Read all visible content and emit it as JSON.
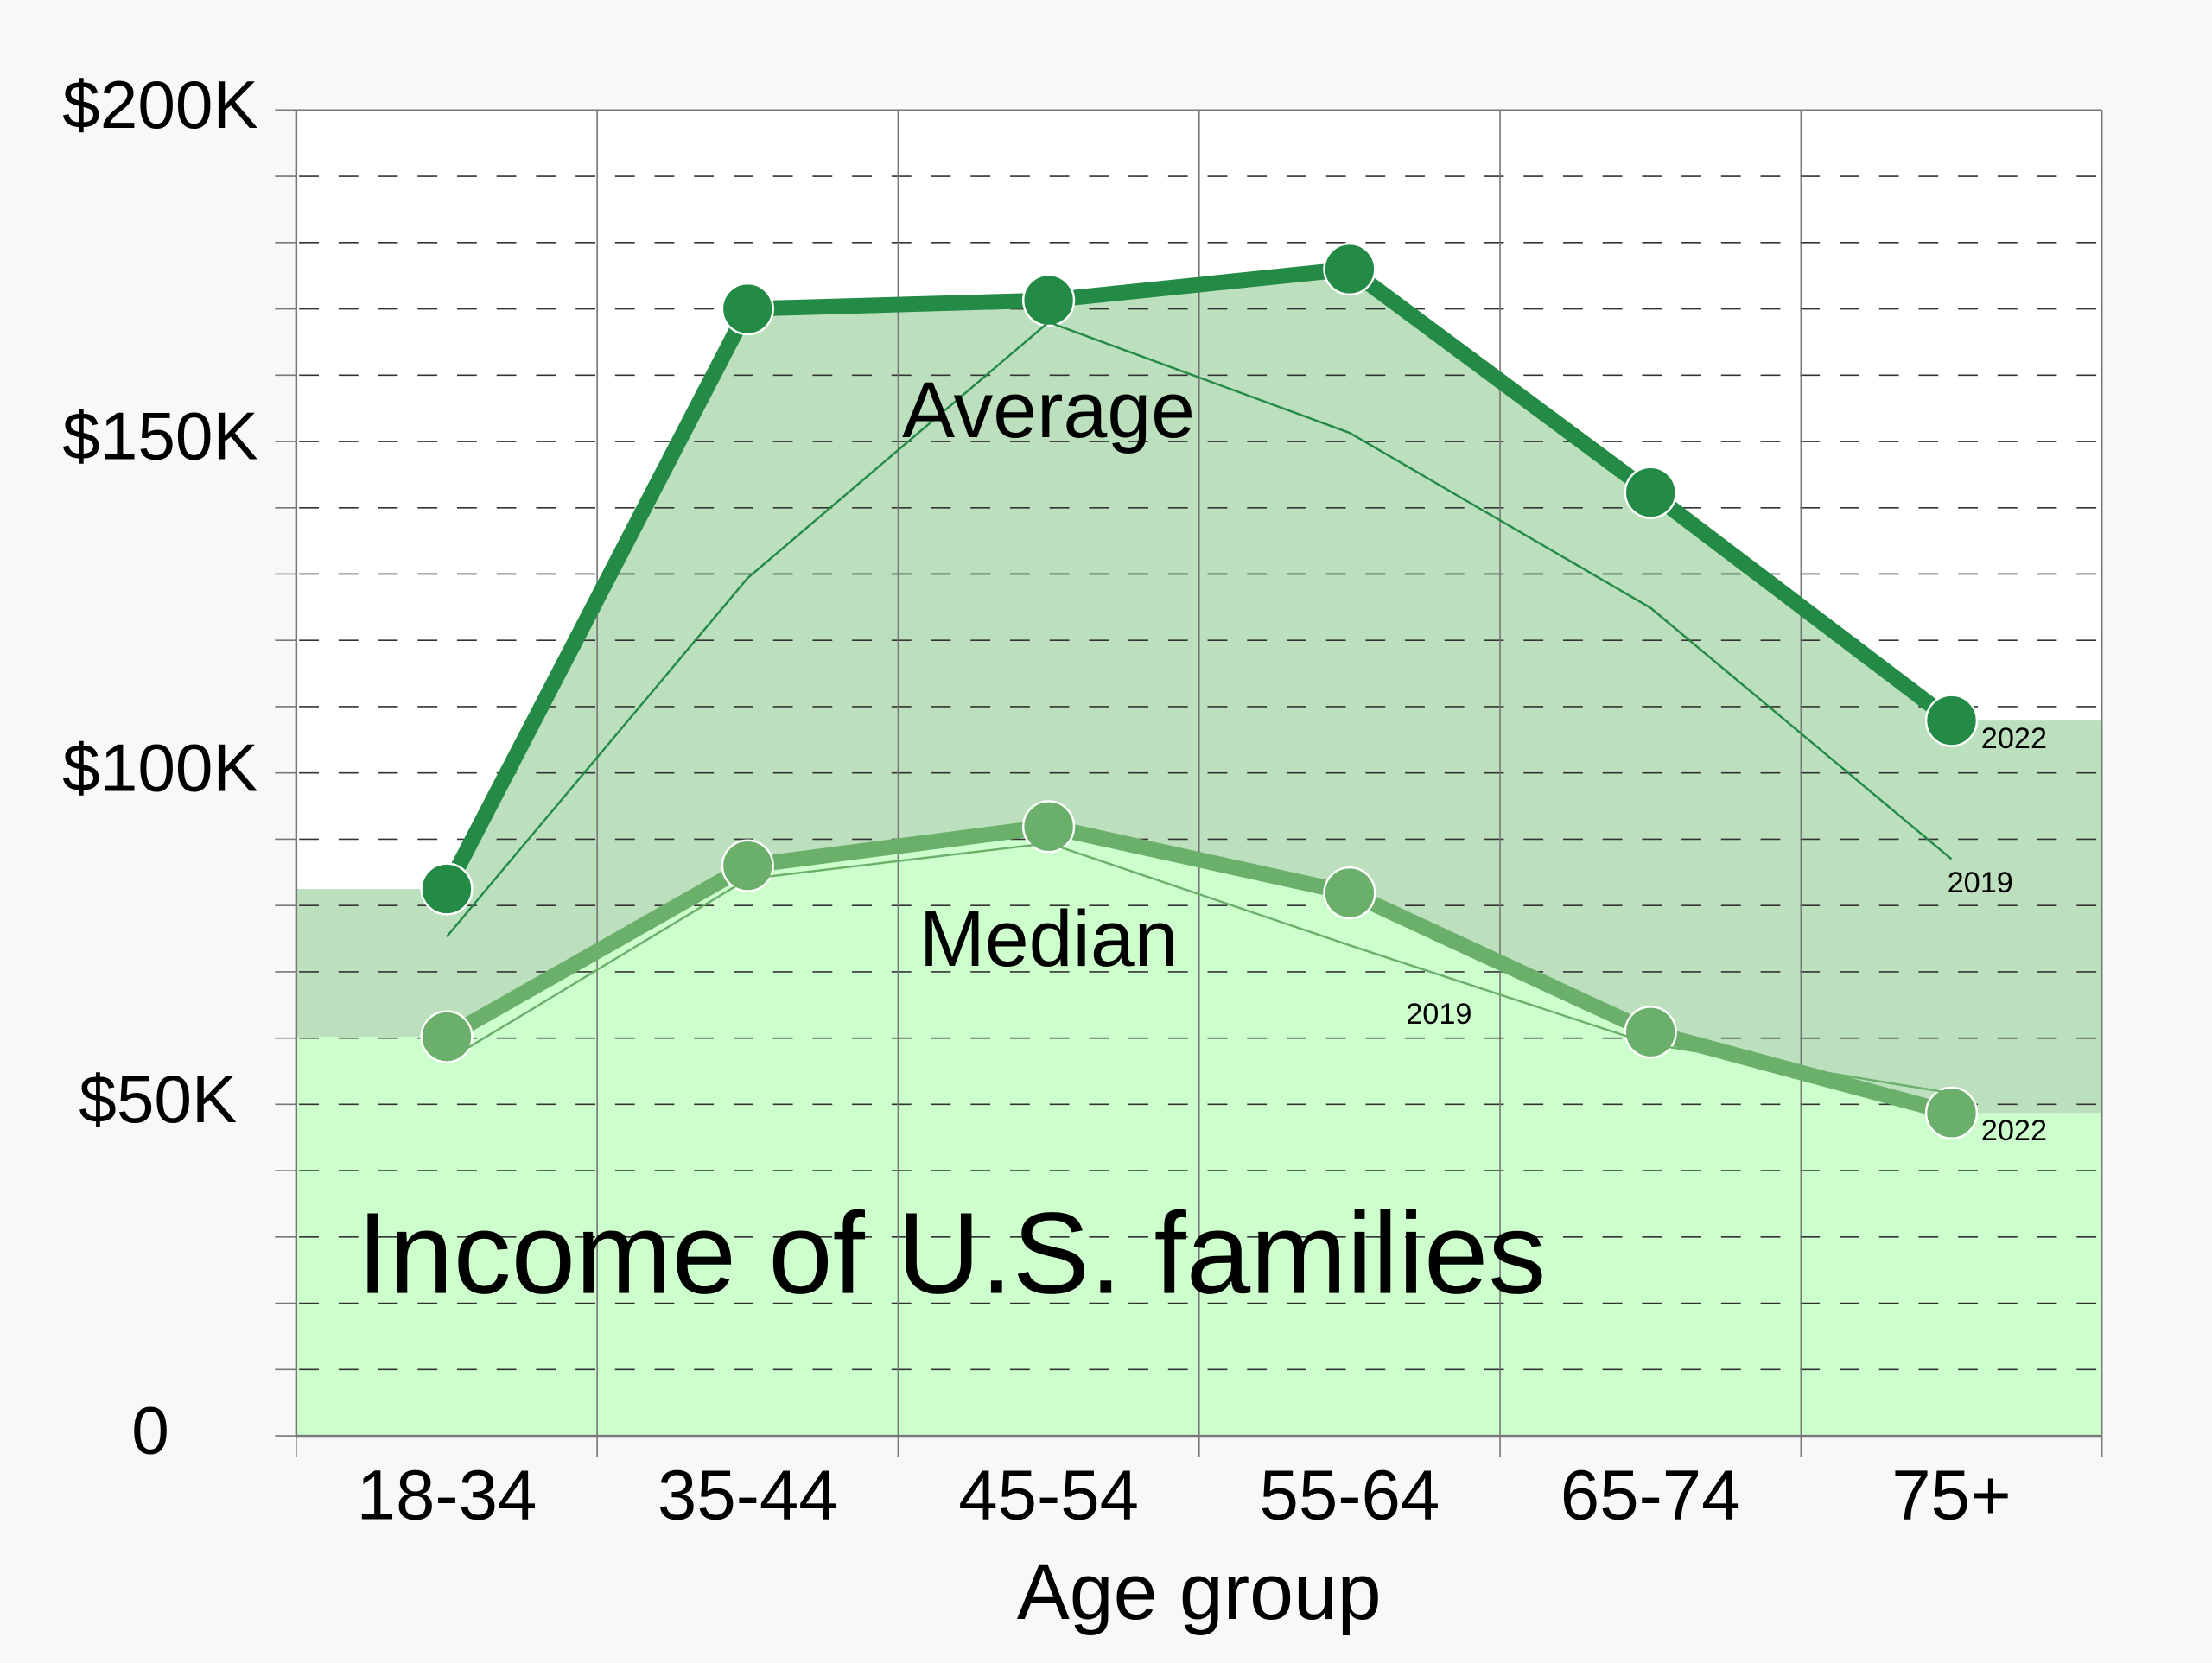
{
  "chart_data": {
    "type": "line",
    "title": "Income of U.S. families",
    "x_label": "Age group",
    "categories": [
      "18-34",
      "35-44",
      "45-54",
      "55-64",
      "65-74",
      "75+"
    ],
    "ylim": [
      0,
      200000
    ],
    "yticks": [
      0,
      {
        "value": 50000,
        "label": "$50K"
      },
      {
        "value": 100000,
        "label": "$100K"
      },
      {
        "value": 150000,
        "label": "$150K"
      },
      {
        "value": 200000,
        "label": "$200K"
      }
    ],
    "minor_yticks": [
      10000,
      20000,
      30000,
      40000,
      60000,
      70000,
      80000,
      90000,
      110000,
      120000,
      130000,
      140000,
      160000,
      170000,
      180000,
      190000
    ],
    "grid": true,
    "series": [
      {
        "name": "Average",
        "color": "#238b45",
        "area_color": "#bcdfbd",
        "lines": [
          {
            "label": "2022",
            "values": [
              82500,
              170000,
              171300,
              176000,
              142300,
              107900
            ]
          },
          {
            "label": "2019",
            "values": [
              75300,
              129400,
              168000,
              151300,
              124900,
              87000
            ]
          }
        ]
      },
      {
        "name": "Median",
        "color": "#6aaf6a",
        "area_color": "#ccffcc",
        "lines": [
          {
            "label": "2022",
            "values": [
              60200,
              86000,
              91900,
              81900,
              60900,
              48700
            ]
          },
          {
            "label": "2019",
            "values": [
              56600,
              84000,
              89400,
              74000,
              59100,
              51700
            ]
          }
        ]
      }
    ]
  }
}
